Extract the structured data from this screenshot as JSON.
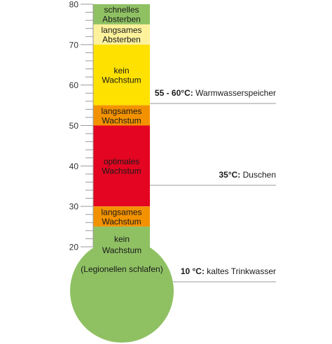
{
  "scale": {
    "min": 20,
    "max": 80,
    "major_ticks": [
      80,
      70,
      60,
      50,
      40,
      30,
      20
    ],
    "minor_step": 2
  },
  "zones": [
    {
      "from": 75,
      "to": 80,
      "lines": [
        "schnelles",
        "Absterben"
      ],
      "color": "#8fc163",
      "text_color": "#1a1a1a"
    },
    {
      "from": 70,
      "to": 75,
      "lines": [
        "langsames",
        "Absterben"
      ],
      "color": "#fdf29b",
      "text_color": "#1a1a1a"
    },
    {
      "from": 55,
      "to": 70,
      "lines": [
        "kein",
        "Wachstum"
      ],
      "color": "#ffe100",
      "text_color": "#1a1a1a"
    },
    {
      "from": 50,
      "to": 55,
      "lines": [
        "langsames",
        "Wachstum"
      ],
      "color": "#f39200",
      "text_color": "#1a1a1a"
    },
    {
      "from": 30,
      "to": 50,
      "lines": [
        "optimales",
        "Wachstum"
      ],
      "color": "#e30521",
      "text_color": "#1a1a1a"
    },
    {
      "from": 25,
      "to": 30,
      "lines": [
        "langsames",
        "Wachstum"
      ],
      "color": "#f39200",
      "text_color": "#1a1a1a"
    }
  ],
  "bulb": {
    "color": "#8fc163",
    "lines": [
      "kein",
      "Wachstum"
    ],
    "caption": "(Legionellen schlafen)"
  },
  "markers": [
    {
      "bold": "55 - 60°C:",
      "text": "Warmwasserspeicher"
    },
    {
      "bold": "35°C:",
      "text": "Duschen"
    },
    {
      "bold": "10 °C:",
      "text": "kaltes Trinkwasser"
    }
  ]
}
